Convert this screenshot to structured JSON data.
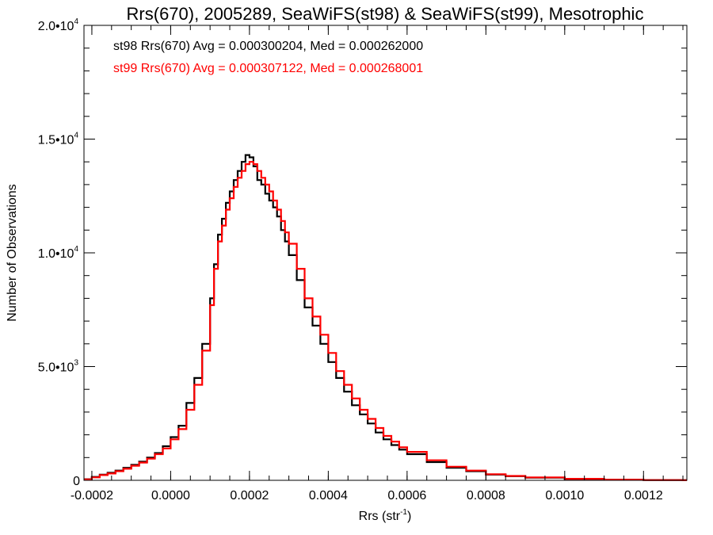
{
  "chart_data": {
    "type": "line",
    "title": "Rrs(670), 2005289, SeaWiFS(st98) & SeaWiFS(st99), Mesotrophic",
    "xlabel_base": "Rrs (str",
    "xlabel_sup": "-1",
    "xlabel_end": ")",
    "ylabel": "Number of Observations",
    "xlim": [
      -0.00022,
      0.00131
    ],
    "ylim": [
      0,
      20000
    ],
    "x_ticks": [
      {
        "value": -0.0002,
        "label": "-0.0002"
      },
      {
        "value": 0.0,
        "label": "0.0000"
      },
      {
        "value": 0.0002,
        "label": "0.0002"
      },
      {
        "value": 0.0004,
        "label": "0.0004"
      },
      {
        "value": 0.0006,
        "label": "0.0006"
      },
      {
        "value": 0.0008,
        "label": "0.0008"
      },
      {
        "value": 0.001,
        "label": "0.0010"
      },
      {
        "value": 0.0012,
        "label": "0.0012"
      }
    ],
    "y_ticks": [
      {
        "value": 0,
        "label": "0",
        "exp": ""
      },
      {
        "value": 5000,
        "label": "5.0•10",
        "exp": "3"
      },
      {
        "value": 10000,
        "label": "1.0•10",
        "exp": "4"
      },
      {
        "value": 15000,
        "label": "1.5•10",
        "exp": "4"
      },
      {
        "value": 20000,
        "label": "2.0•10",
        "exp": "4"
      }
    ],
    "legend_position": "top-left",
    "series": [
      {
        "name": "st98",
        "label": "st98 Rrs(670) Avg = 0.000300204, Med = 0.000262000",
        "color": "#000000",
        "x": [
          -0.00022,
          -0.0002,
          -0.00018,
          -0.00016,
          -0.00014,
          -0.00012,
          -0.0001,
          -8e-05,
          -6e-05,
          -4e-05,
          -2e-05,
          0.0,
          2e-05,
          4e-05,
          6e-05,
          8e-05,
          0.0001,
          0.00011,
          0.00012,
          0.00013,
          0.00014,
          0.00015,
          0.00016,
          0.00017,
          0.00018,
          0.00019,
          0.0002,
          0.00021,
          0.00022,
          0.00023,
          0.00024,
          0.00025,
          0.00026,
          0.00027,
          0.00028,
          0.00029,
          0.0003,
          0.00032,
          0.00034,
          0.00036,
          0.00038,
          0.0004,
          0.00042,
          0.00044,
          0.00046,
          0.00048,
          0.0005,
          0.00052,
          0.00054,
          0.00056,
          0.00058,
          0.0006,
          0.00065,
          0.0007,
          0.00075,
          0.0008,
          0.00085,
          0.0009,
          0.001,
          0.0011,
          0.0012,
          0.0013
        ],
        "y": [
          50,
          150,
          250,
          330,
          430,
          550,
          680,
          820,
          1000,
          1200,
          1500,
          1900,
          2400,
          3400,
          4500,
          6000,
          8000,
          9500,
          10800,
          11500,
          12200,
          12700,
          13200,
          13600,
          14000,
          14300,
          14200,
          13800,
          13200,
          13000,
          12600,
          12300,
          12000,
          11600,
          11000,
          10500,
          9900,
          8800,
          7600,
          6800,
          6000,
          5200,
          4500,
          3900,
          3300,
          2900,
          2500,
          2100,
          1800,
          1550,
          1350,
          1150,
          800,
          550,
          400,
          250,
          180,
          120,
          60,
          30,
          10,
          5
        ]
      },
      {
        "name": "st99",
        "label": "st99 Rrs(670) Avg = 0.000307122, Med = 0.000268001",
        "color": "#ff0000",
        "x": [
          -0.00022,
          -0.0002,
          -0.00018,
          -0.00016,
          -0.00014,
          -0.00012,
          -0.0001,
          -8e-05,
          -6e-05,
          -4e-05,
          -2e-05,
          0.0,
          2e-05,
          4e-05,
          6e-05,
          8e-05,
          0.0001,
          0.00011,
          0.00012,
          0.00013,
          0.00014,
          0.00015,
          0.00016,
          0.00017,
          0.00018,
          0.00019,
          0.0002,
          0.00021,
          0.00022,
          0.00023,
          0.00024,
          0.00025,
          0.00026,
          0.00027,
          0.00028,
          0.00029,
          0.0003,
          0.00032,
          0.00034,
          0.00036,
          0.00038,
          0.0004,
          0.00042,
          0.00044,
          0.00046,
          0.00048,
          0.0005,
          0.00052,
          0.00054,
          0.00056,
          0.00058,
          0.0006,
          0.00065,
          0.0007,
          0.00075,
          0.0008,
          0.00085,
          0.0009,
          0.001,
          0.0011,
          0.0012,
          0.0013
        ],
        "y": [
          40,
          130,
          230,
          300,
          400,
          510,
          640,
          780,
          950,
          1150,
          1400,
          1800,
          2250,
          3100,
          4200,
          5700,
          7700,
          9300,
          10500,
          11200,
          11900,
          12400,
          12900,
          13300,
          13600,
          13900,
          14000,
          13900,
          13600,
          13300,
          13000,
          12700,
          12300,
          11900,
          11400,
          10900,
          10400,
          9300,
          8000,
          7200,
          6400,
          5600,
          4800,
          4200,
          3600,
          3100,
          2700,
          2300,
          1950,
          1700,
          1450,
          1250,
          880,
          600,
          430,
          270,
          190,
          130,
          65,
          30,
          10,
          5
        ]
      }
    ]
  }
}
